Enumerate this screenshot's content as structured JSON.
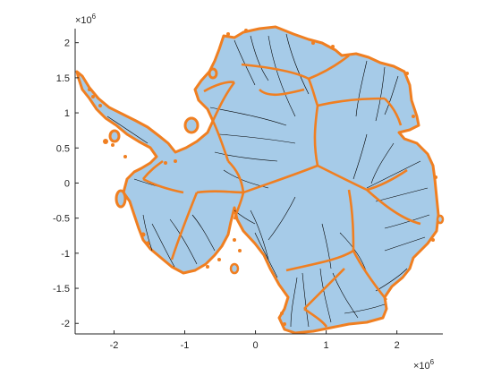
{
  "chart_data": {
    "type": "map",
    "title": "",
    "xlabel": "",
    "ylabel": "",
    "x_multiplier": "×10",
    "x_multiplier_exp": "6",
    "y_multiplier": "×10",
    "y_multiplier_exp": "6",
    "xlim": [
      -2.55,
      2.65
    ],
    "ylim": [
      -2.15,
      2.2
    ],
    "x_ticks": [
      {
        "value": -2,
        "label": "-2"
      },
      {
        "value": -1,
        "label": "-1"
      },
      {
        "value": 0,
        "label": "0"
      },
      {
        "value": 1,
        "label": "1"
      },
      {
        "value": 2,
        "label": "2"
      }
    ],
    "y_ticks": [
      {
        "value": 2,
        "label": "2"
      },
      {
        "value": 1.5,
        "label": "1.5"
      },
      {
        "value": 1,
        "label": "1"
      },
      {
        "value": 0.5,
        "label": "0.5"
      },
      {
        "value": 0,
        "label": "0"
      },
      {
        "value": -0.5,
        "label": "-0.5"
      },
      {
        "value": -1,
        "label": "-1"
      },
      {
        "value": -1.5,
        "label": "-1.5"
      },
      {
        "value": -2,
        "label": "-2"
      }
    ],
    "colors": {
      "ice_fill": "#a6cbe8",
      "basin_boundary": "#f07f21",
      "flowlines": "#000000",
      "axis": "#262626"
    }
  }
}
